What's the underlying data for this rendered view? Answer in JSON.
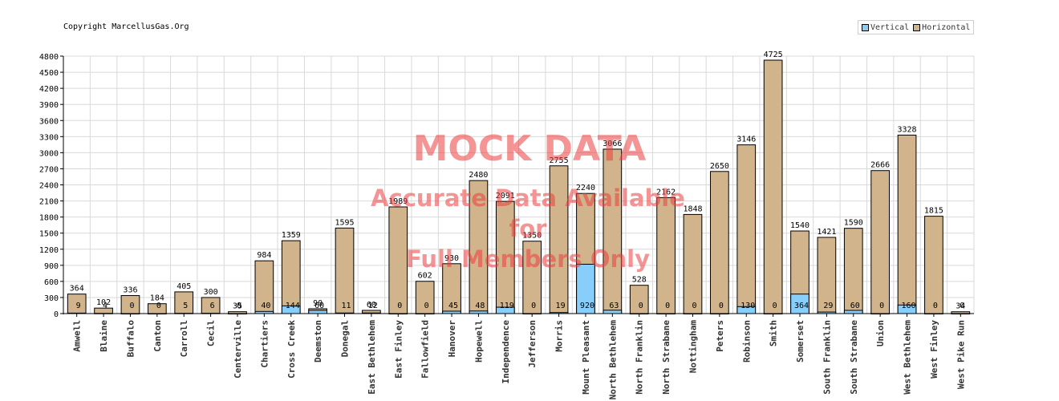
{
  "copyright": "Copyright MarcellusGas.Org",
  "watermark": {
    "title": "MOCK DATA",
    "line1": "Accurate Data Available",
    "line2": "for",
    "line3": "Full Members Only"
  },
  "colors": {
    "vertical": "#87cefa",
    "horizontal": "#d2b48c",
    "grid": "#d9d9d9",
    "watermark": "#eb3c3c"
  },
  "legend": [
    {
      "label": "Vertical",
      "color": "#87cefa"
    },
    {
      "label": "Horizontal",
      "color": "#d2b48c"
    }
  ],
  "chart_data": {
    "type": "bar",
    "title": "",
    "xlabel": "",
    "ylabel": "",
    "ylim": [
      0,
      4800
    ],
    "yticks": [
      0,
      300,
      600,
      900,
      1200,
      1500,
      1800,
      2100,
      2400,
      2700,
      3000,
      3300,
      3600,
      3900,
      4200,
      4500,
      4800
    ],
    "grid": true,
    "legend_position": "top-right",
    "categories": [
      "Amwell",
      "Blaine",
      "Buffalo",
      "Canton",
      "Carroll",
      "Cecil",
      "Centerville",
      "Chartiers",
      "Cross Creek",
      "Deemston",
      "Donegal",
      "East Bethlehem",
      "East Finley",
      "Fallowfield",
      "Hanover",
      "Hopewell",
      "Independence",
      "Jefferson",
      "Morris",
      "Mount Pleasant",
      "North Bethlehem",
      "North Franklin",
      "North Strabane",
      "Nottingham",
      "Peters",
      "Robinson",
      "Smith",
      "Somerset",
      "South Franklin",
      "South Strabane",
      "Union",
      "West Bethlehem",
      "West Finley",
      "West Pike Run"
    ],
    "series": [
      {
        "name": "Vertical",
        "values": [
          9,
          4,
          0,
          0,
          5,
          6,
          0,
          40,
          144,
          60,
          11,
          12,
          0,
          0,
          45,
          48,
          119,
          0,
          19,
          920,
          63,
          0,
          0,
          0,
          0,
          130,
          0,
          364,
          29,
          60,
          0,
          160,
          0,
          0
        ]
      },
      {
        "name": "Horizontal",
        "values": [
          364,
          102,
          336,
          184,
          405,
          300,
          35,
          984,
          1359,
          90,
          1595,
          60,
          1989,
          602,
          930,
          2480,
          2091,
          1350,
          2755,
          2240,
          3066,
          528,
          2162,
          1848,
          2650,
          3146,
          4725,
          1540,
          1421,
          1590,
          2666,
          3328,
          1815,
          34
        ]
      }
    ]
  }
}
